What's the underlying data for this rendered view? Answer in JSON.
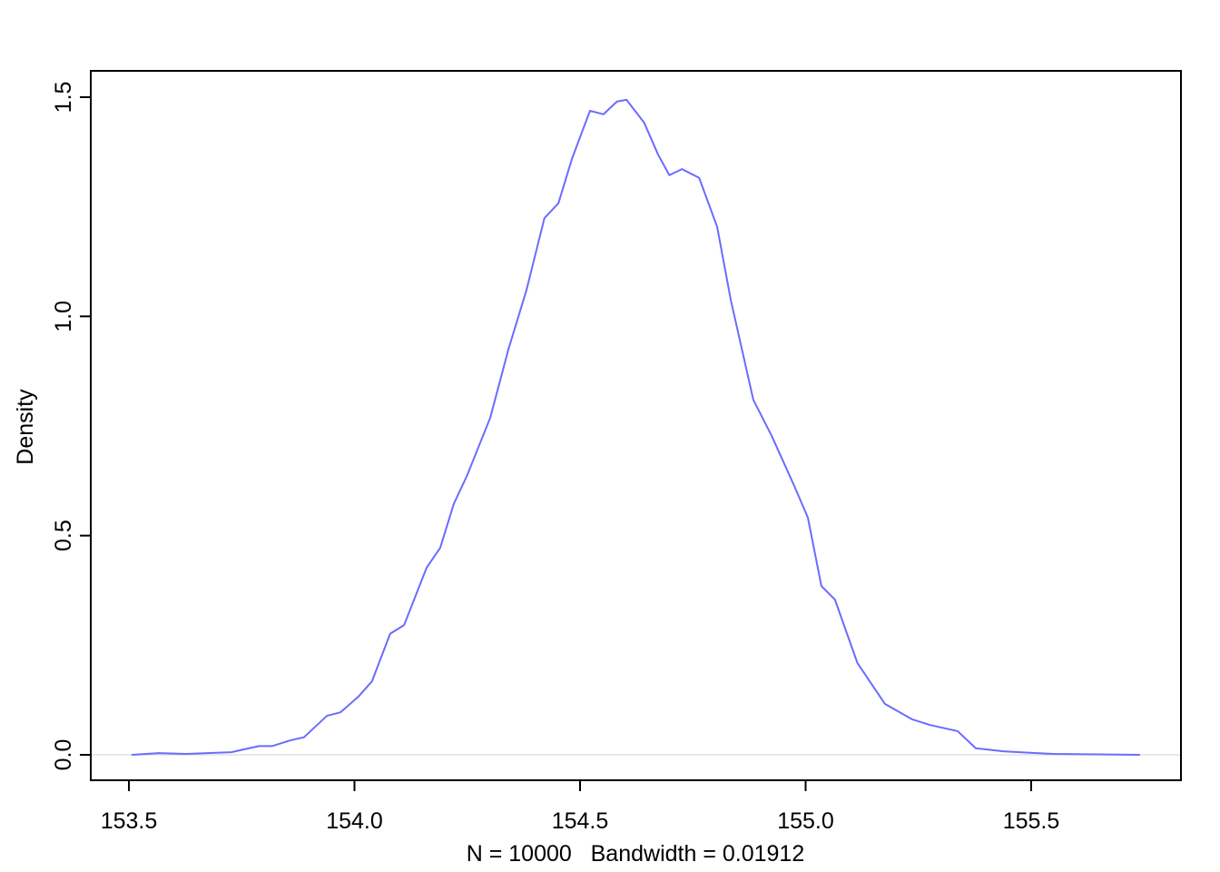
{
  "chart_data": {
    "type": "line",
    "x_label": "N = 10000   Bandwidth = 0.01912",
    "y_label": "Density",
    "x": [
      153.506,
      153.566,
      153.627,
      153.727,
      153.788,
      153.818,
      153.858,
      153.888,
      153.939,
      153.969,
      154.009,
      154.039,
      154.079,
      154.11,
      154.16,
      154.19,
      154.22,
      154.25,
      154.301,
      154.341,
      154.381,
      154.421,
      154.452,
      154.482,
      154.522,
      154.552,
      154.582,
      154.603,
      154.642,
      154.673,
      154.698,
      154.726,
      154.764,
      154.804,
      154.834,
      154.884,
      154.925,
      154.975,
      155.005,
      155.035,
      155.065,
      155.115,
      155.176,
      155.236,
      155.276,
      155.337,
      155.377,
      155.438,
      155.548,
      155.741
    ],
    "series": [
      {
        "color": "#6b6bff",
        "values": [
          0,
          0.004,
          0.002,
          0.006,
          0.02,
          0.02,
          0.033,
          0.04,
          0.089,
          0.097,
          0.133,
          0.168,
          0.276,
          0.296,
          0.427,
          0.472,
          0.572,
          0.638,
          0.769,
          0.924,
          1.059,
          1.224,
          1.258,
          1.359,
          1.469,
          1.461,
          1.49,
          1.494,
          1.442,
          1.369,
          1.322,
          1.336,
          1.316,
          1.204,
          1.038,
          0.81,
          0.727,
          0.613,
          0.541,
          0.385,
          0.354,
          0.209,
          0.116,
          0.081,
          0.068,
          0.054,
          0.015,
          0.008,
          0.002,
          0
        ]
      }
    ],
    "xlim": [
      153.4155,
      155.832
    ],
    "ylim": [
      -0.058,
      1.56
    ],
    "xticks": [
      153.5,
      {
        "value": 154,
        "label": "154.0"
      },
      154.5,
      {
        "value": 155,
        "label": "155.0"
      },
      155.5
    ],
    "yticks": [
      {
        "value": 0,
        "label": "0.0"
      },
      0.5,
      {
        "value": 1,
        "label": "1.0"
      },
      1.5
    ],
    "grid": false
  }
}
